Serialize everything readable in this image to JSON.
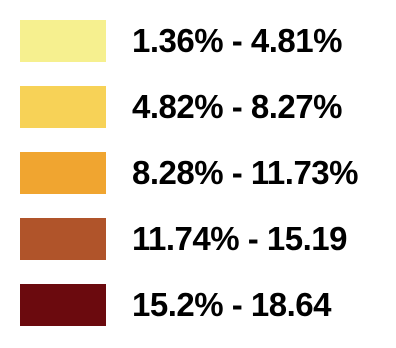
{
  "legend": {
    "items": [
      {
        "label": "1.36% - 4.81%",
        "color": "#f6f08f"
      },
      {
        "label": "4.82% - 8.27%",
        "color": "#f7d257"
      },
      {
        "label": "8.28% - 11.73%",
        "color": "#f0a530"
      },
      {
        "label": "11.74% - 15.19",
        "color": "#b0542a"
      },
      {
        "label": "15.2% - 18.64",
        "color": "#6b0a0e"
      }
    ]
  }
}
